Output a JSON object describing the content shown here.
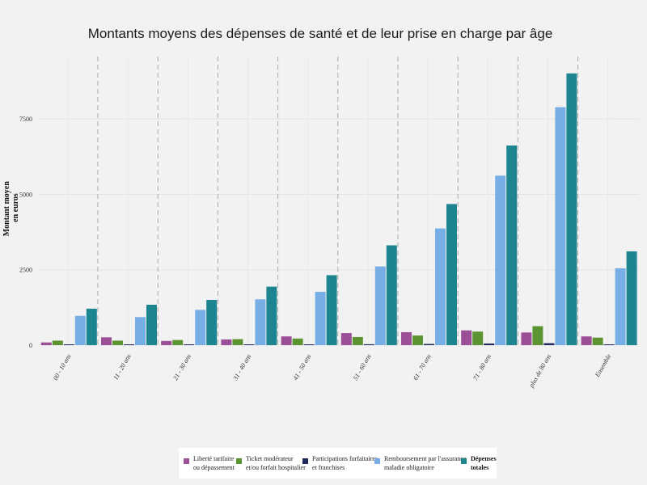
{
  "chart_data": {
    "type": "bar",
    "title": "Montants moyens des dépenses de santé et de leur prise en charge par âge",
    "xlabel": "",
    "ylabel": [
      "Montant moyen",
      "en euros"
    ],
    "ylim": [
      0,
      9300
    ],
    "yticks": [
      0,
      2500,
      5000,
      7500
    ],
    "grid": true,
    "legend_position": "bottom",
    "categories": [
      "00 - 10 ans",
      "11 - 20 ans",
      "21 - 30 ans",
      "31 - 40 ans",
      "41 - 50 ans",
      "51 - 60 ans",
      "61 - 70 ans",
      "71 - 80 ans",
      "plus de 80 ans",
      "Ensemble"
    ],
    "series": [
      {
        "name": "Liberté tarifaire ou dépassement",
        "legend_lines": [
          "Liberté tarifaire",
          "ou dépassement"
        ],
        "color": "#9b4f96",
        "values": [
          90,
          260,
          140,
          190,
          290,
          400,
          430,
          490,
          420,
          290
        ]
      },
      {
        "name": "Ticket modérateur et/ou forfait hospitalier",
        "legend_lines": [
          "Ticket modérateur",
          " et/ou forfait hospitalier"
        ],
        "color": "#5d9432",
        "values": [
          150,
          150,
          170,
          200,
          220,
          270,
          320,
          450,
          630,
          250
        ]
      },
      {
        "name": "Participations forfaitaires et franchises",
        "legend_lines": [
          "Participations forfaitaires",
          "et franchises"
        ],
        "color": "#1e2a5c",
        "values": [
          10,
          12,
          15,
          20,
          25,
          30,
          40,
          55,
          65,
          25
        ]
      },
      {
        "name": "Remboursement par l'assurance maladie obligatoire",
        "legend_lines": [
          "Remboursement par l'assurance",
          "maladie obligatoire"
        ],
        "color": "#77aee6",
        "values": [
          970,
          930,
          1170,
          1520,
          1770,
          2610,
          3870,
          5620,
          7890,
          2550
        ]
      },
      {
        "name": "Dépenses totales",
        "legend_lines": [
          "Dépenses",
          "totales"
        ],
        "color": "#1c8590",
        "bold": true,
        "values": [
          1210,
          1340,
          1500,
          1940,
          2320,
          3310,
          4680,
          6620,
          9010,
          3110
        ]
      }
    ]
  }
}
